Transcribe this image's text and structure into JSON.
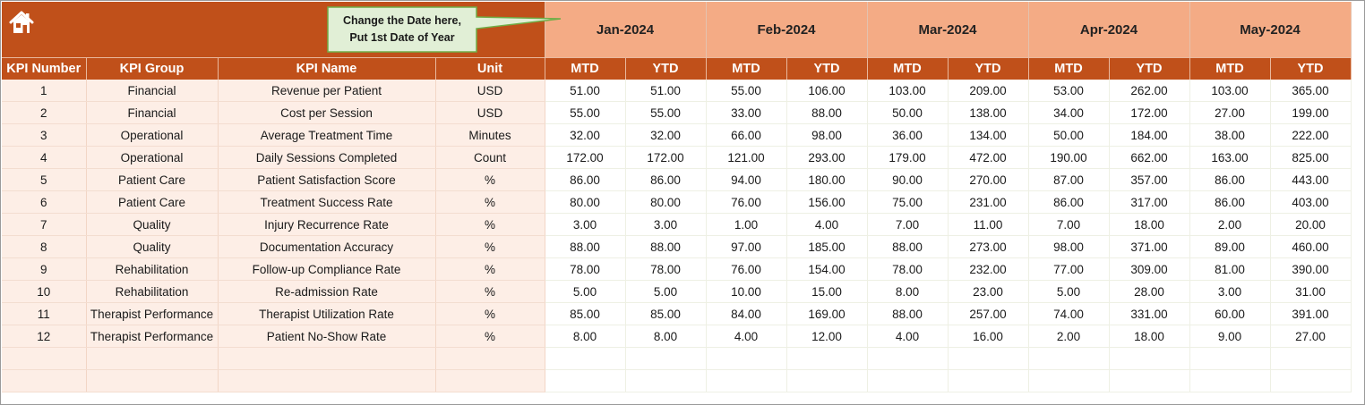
{
  "note": {
    "line1": "Change the Date here,",
    "line2": "Put 1st Date of Year"
  },
  "months": [
    "Jan-2024",
    "Feb-2024",
    "Mar-2024",
    "Apr-2024",
    "May-2024"
  ],
  "headers": {
    "kpi_number": "KPI Number",
    "kpi_group": "KPI Group",
    "kpi_name": "KPI Name",
    "unit": "Unit",
    "mtd": "MTD",
    "ytd": "YTD"
  },
  "rows": [
    {
      "num": "1",
      "group": "Financial",
      "name": "Revenue per Patient",
      "unit": "USD",
      "values": [
        "51.00",
        "51.00",
        "55.00",
        "106.00",
        "103.00",
        "209.00",
        "53.00",
        "262.00",
        "103.00",
        "365.00"
      ]
    },
    {
      "num": "2",
      "group": "Financial",
      "name": "Cost per Session",
      "unit": "USD",
      "values": [
        "55.00",
        "55.00",
        "33.00",
        "88.00",
        "50.00",
        "138.00",
        "34.00",
        "172.00",
        "27.00",
        "199.00"
      ]
    },
    {
      "num": "3",
      "group": "Operational",
      "name": "Average Treatment Time",
      "unit": "Minutes",
      "values": [
        "32.00",
        "32.00",
        "66.00",
        "98.00",
        "36.00",
        "134.00",
        "50.00",
        "184.00",
        "38.00",
        "222.00"
      ]
    },
    {
      "num": "4",
      "group": "Operational",
      "name": "Daily Sessions Completed",
      "unit": "Count",
      "values": [
        "172.00",
        "172.00",
        "121.00",
        "293.00",
        "179.00",
        "472.00",
        "190.00",
        "662.00",
        "163.00",
        "825.00"
      ]
    },
    {
      "num": "5",
      "group": "Patient Care",
      "name": "Patient Satisfaction Score",
      "unit": "%",
      "values": [
        "86.00",
        "86.00",
        "94.00",
        "180.00",
        "90.00",
        "270.00",
        "87.00",
        "357.00",
        "86.00",
        "443.00"
      ]
    },
    {
      "num": "6",
      "group": "Patient Care",
      "name": "Treatment Success Rate",
      "unit": "%",
      "values": [
        "80.00",
        "80.00",
        "76.00",
        "156.00",
        "75.00",
        "231.00",
        "86.00",
        "317.00",
        "86.00",
        "403.00"
      ]
    },
    {
      "num": "7",
      "group": "Quality",
      "name": "Injury Recurrence Rate",
      "unit": "%",
      "values": [
        "3.00",
        "3.00",
        "1.00",
        "4.00",
        "7.00",
        "11.00",
        "7.00",
        "18.00",
        "2.00",
        "20.00"
      ]
    },
    {
      "num": "8",
      "group": "Quality",
      "name": "Documentation Accuracy",
      "unit": "%",
      "values": [
        "88.00",
        "88.00",
        "97.00",
        "185.00",
        "88.00",
        "273.00",
        "98.00",
        "371.00",
        "89.00",
        "460.00"
      ]
    },
    {
      "num": "9",
      "group": "Rehabilitation",
      "name": "Follow-up Compliance Rate",
      "unit": "%",
      "values": [
        "78.00",
        "78.00",
        "76.00",
        "154.00",
        "78.00",
        "232.00",
        "77.00",
        "309.00",
        "81.00",
        "390.00"
      ]
    },
    {
      "num": "10",
      "group": "Rehabilitation",
      "name": "Re-admission Rate",
      "unit": "%",
      "values": [
        "5.00",
        "5.00",
        "10.00",
        "15.00",
        "8.00",
        "23.00",
        "5.00",
        "28.00",
        "3.00",
        "31.00"
      ]
    },
    {
      "num": "11",
      "group": "Therapist Performance",
      "name": "Therapist Utilization Rate",
      "unit": "%",
      "values": [
        "85.00",
        "85.00",
        "84.00",
        "169.00",
        "88.00",
        "257.00",
        "74.00",
        "331.00",
        "60.00",
        "391.00"
      ]
    },
    {
      "num": "12",
      "group": "Therapist Performance",
      "name": "Patient No-Show Rate",
      "unit": "%",
      "values": [
        "8.00",
        "8.00",
        "4.00",
        "12.00",
        "4.00",
        "16.00",
        "2.00",
        "18.00",
        "9.00",
        "27.00"
      ]
    },
    {
      "num": "",
      "group": "",
      "name": "",
      "unit": "",
      "values": [
        "",
        "",
        "",
        "",
        "",
        "",
        "",
        "",
        "",
        ""
      ]
    },
    {
      "num": "",
      "group": "",
      "name": "",
      "unit": "",
      "values": [
        "",
        "",
        "",
        "",
        "",
        "",
        "",
        "",
        "",
        ""
      ]
    }
  ],
  "colors": {
    "header_brand": "#c0501a",
    "month_band": "#f4ab85",
    "label_cell": "#fdeee6",
    "note_fill": "#e1efd6",
    "note_border": "#70ad47"
  }
}
